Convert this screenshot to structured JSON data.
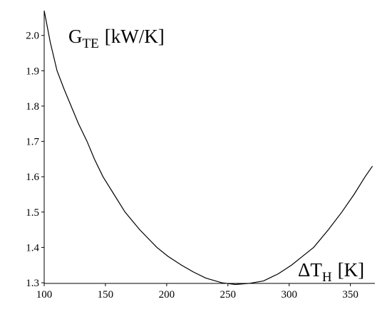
{
  "chart_data": {
    "type": "line",
    "y_label": {
      "base": "G",
      "sub": "TE",
      "unit": "[kW/K]"
    },
    "x_label": {
      "base": "ΔT",
      "sub": "H",
      "unit": "[K]"
    },
    "x": [
      100,
      105,
      110.5,
      116,
      122,
      128,
      135,
      141,
      148,
      157,
      166,
      178,
      192,
      201,
      212,
      222,
      232,
      245,
      256,
      267,
      279,
      291,
      302,
      311,
      320,
      332,
      343,
      353,
      362,
      368
    ],
    "series": [
      {
        "color": "#000000",
        "values": [
          2.07,
          1.98,
          1.9,
          1.85,
          1.8,
          1.75,
          1.7,
          1.65,
          1.6,
          1.55,
          1.5,
          1.45,
          1.4,
          1.375,
          1.35,
          1.33,
          1.313,
          1.3,
          1.295,
          1.298,
          1.305,
          1.325,
          1.35,
          1.375,
          1.4,
          1.45,
          1.5,
          1.55,
          1.6,
          1.63
        ]
      }
    ],
    "xlim": [
      100,
      370
    ],
    "ylim": [
      1.29,
      2.07
    ],
    "xticks": [
      100,
      150,
      200,
      250,
      300,
      350
    ],
    "yticks": [
      1.3,
      1.4,
      1.5,
      1.6,
      1.7,
      1.8,
      1.9,
      {
        "value": 2,
        "label": "2.0"
      }
    ]
  }
}
